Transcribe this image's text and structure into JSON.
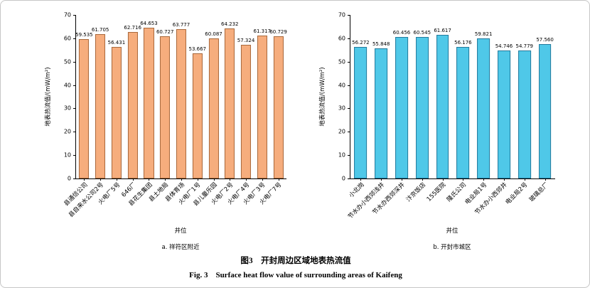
{
  "figure": {
    "caption_cn": "图3　开封周边区域地表热流值",
    "caption_en": "Fig. 3　Surface heat flow value of surrounding areas of Kaifeng"
  },
  "chart_data": [
    {
      "type": "bar",
      "title": "a. 祥符区附近",
      "xlabel": "井位",
      "ylabel": "地表热流值/(mW/m²)",
      "ylim": [
        0,
        70
      ],
      "ytick_step": 10,
      "grid": false,
      "legend": "none",
      "bar_color": "#f6ad7d",
      "bar_border": "#a8693c",
      "categories": [
        "县通信公司",
        "县自来水公司2号",
        "火电厂5号",
        "646厂",
        "县花生集团",
        "县土地局",
        "县体育场",
        "火电厂1号",
        "县儿童乐园",
        "火电厂2号",
        "火电厂4号",
        "火电厂3号",
        "火电厂7号"
      ],
      "values": [
        59.535,
        61.705,
        56.431,
        62.716,
        64.653,
        60.727,
        63.777,
        53.667,
        60.087,
        64.232,
        57.324,
        61.317,
        60.729
      ]
    },
    {
      "type": "bar",
      "title": "b. 开封市城区",
      "xlabel": "井位",
      "ylabel": "地表热流值/(mW/m²)",
      "ylim": [
        0,
        70
      ],
      "ytick_step": 10,
      "grid": false,
      "legend": "none",
      "bar_color": "#4fc8e8",
      "bar_border": "#23799c",
      "categories": [
        "小北岗",
        "节水办小西郊浅井",
        "节水办西郊深井",
        "汴京饭店",
        "155医院",
        "隆氏公司",
        "电业局1号",
        "节水办小西郊井",
        "电业局2号",
        "玻璃总厂"
      ],
      "values": [
        56.272,
        55.848,
        60.456,
        60.545,
        61.617,
        56.176,
        59.821,
        54.746,
        54.779,
        57.56
      ]
    }
  ]
}
